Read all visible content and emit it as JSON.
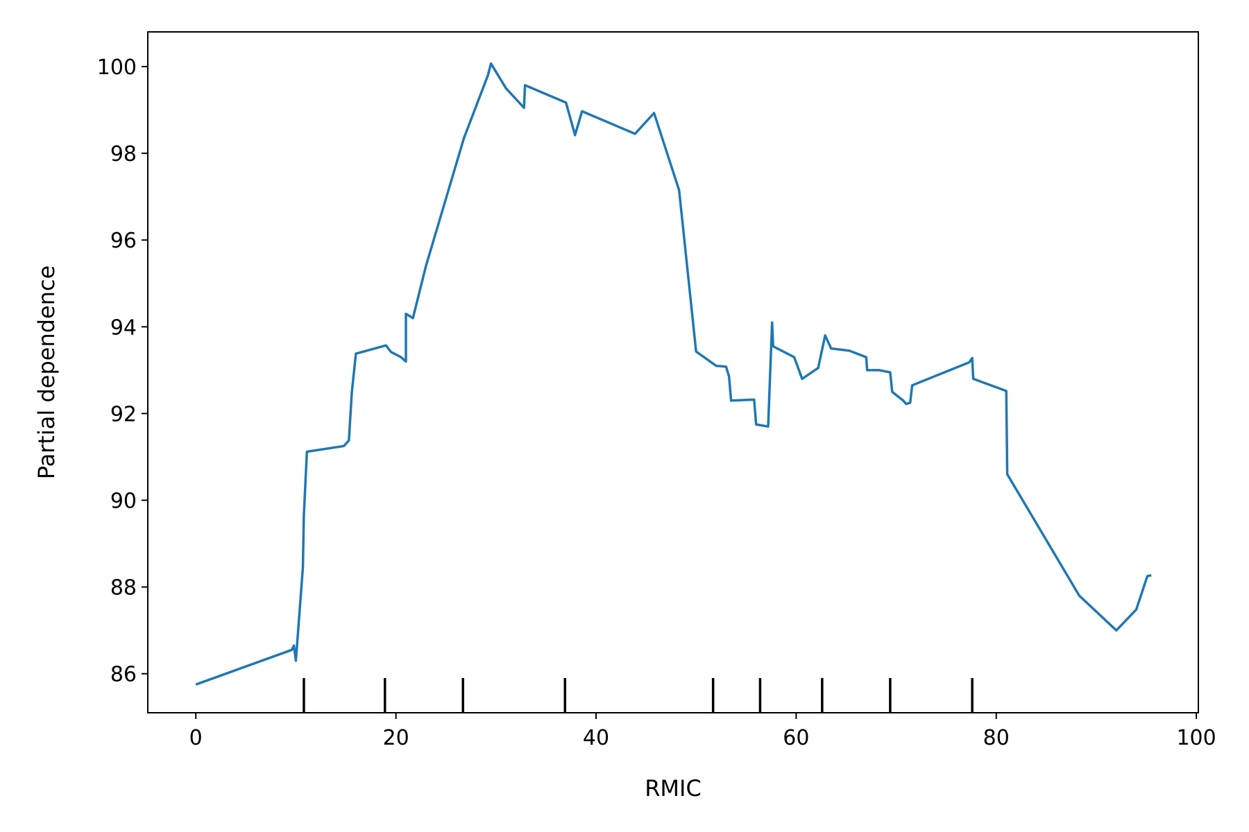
{
  "chart_data": {
    "type": "line",
    "title": "",
    "xlabel": "RMIC",
    "ylabel": "Partial dependence",
    "xlim": [
      -4.8,
      100.2
    ],
    "ylim": [
      85.1,
      100.8
    ],
    "grid": false,
    "legend": "none",
    "x_ticks": [
      0,
      20,
      40,
      60,
      80,
      100
    ],
    "x_tick_labels": [
      "0",
      "20",
      "40",
      "60",
      "80",
      "100"
    ],
    "y_ticks": [
      86,
      88,
      90,
      92,
      94,
      96,
      98,
      100
    ],
    "y_tick_labels": [
      "86",
      "88",
      "90",
      "92",
      "94",
      "96",
      "98",
      "100"
    ],
    "series": [
      {
        "color": "#1f77b4",
        "x": [
          0.0,
          9.6,
          9.8,
          10.0,
          10.7,
          10.8,
          11.1,
          14.8,
          15.3,
          15.6,
          16.0,
          19.0,
          19.5,
          20.5,
          21.0,
          21.0,
          21.7,
          23.0,
          26.8,
          29.2,
          29.5,
          31.0,
          32.8,
          32.9,
          37.0,
          37.9,
          38.6,
          43.9,
          45.8,
          48.3,
          50.0,
          52.0,
          53.0,
          53.3,
          53.5,
          55.8,
          56.0,
          57.2,
          57.6,
          57.7,
          59.8,
          60.6,
          62.2,
          62.9,
          63.5,
          65.3,
          67.0,
          67.1,
          68.3,
          69.4,
          69.6,
          70.7,
          71.0,
          71.4,
          71.6,
          77.3,
          77.6,
          77.7,
          81.0,
          81.1,
          88.3,
          92.0,
          94.0,
          95.1,
          95.5
        ],
        "y": [
          85.75,
          86.55,
          86.65,
          86.3,
          88.45,
          89.65,
          91.12,
          91.25,
          91.38,
          92.5,
          93.38,
          93.57,
          93.42,
          93.3,
          93.2,
          94.3,
          94.2,
          95.4,
          98.35,
          99.8,
          100.07,
          99.5,
          99.05,
          99.57,
          99.17,
          98.42,
          98.97,
          98.45,
          98.93,
          97.15,
          93.43,
          93.1,
          93.08,
          92.85,
          92.3,
          92.32,
          91.75,
          91.7,
          94.1,
          93.55,
          93.3,
          92.8,
          93.05,
          93.8,
          93.5,
          93.45,
          93.3,
          93.0,
          93.0,
          92.95,
          92.5,
          92.3,
          92.22,
          92.25,
          92.65,
          93.18,
          93.28,
          92.8,
          92.52,
          90.6,
          87.8,
          87.0,
          87.48,
          88.25,
          88.27
        ]
      }
    ],
    "rug": {
      "color": "#000000",
      "x": [
        10.8,
        18.9,
        26.7,
        36.9,
        51.7,
        56.4,
        62.6,
        69.4,
        77.6
      ]
    }
  }
}
